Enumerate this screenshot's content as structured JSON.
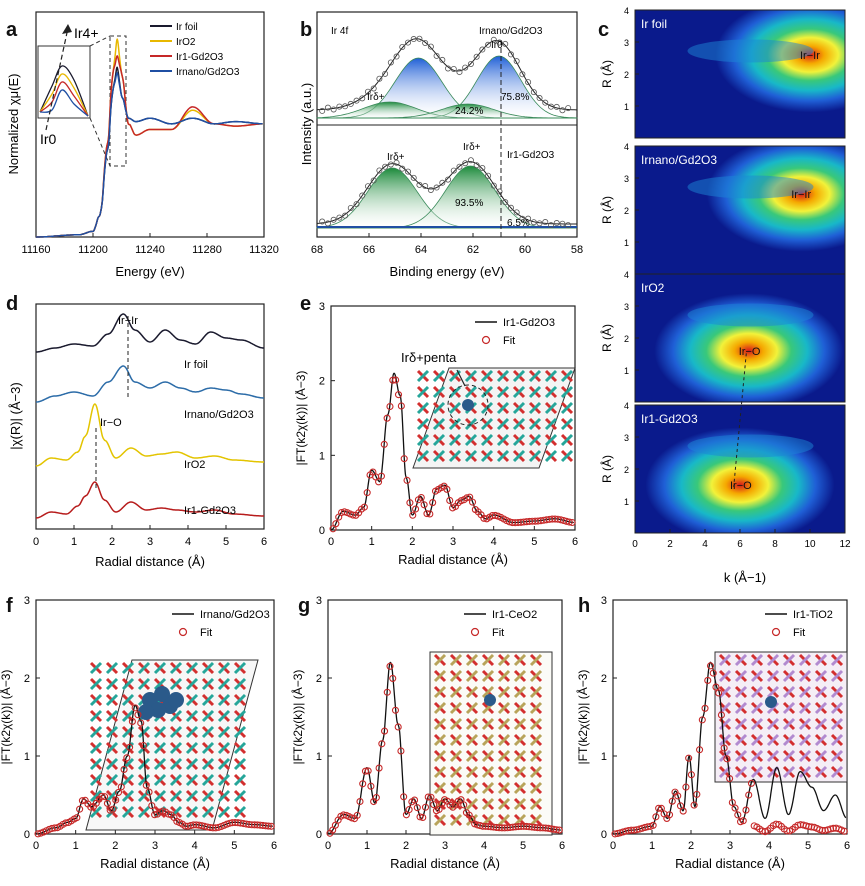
{
  "panels": {
    "a": {
      "letter": "a"
    },
    "b": {
      "letter": "b"
    },
    "c": {
      "letter": "c"
    },
    "d": {
      "letter": "d"
    },
    "e": {
      "letter": "e"
    },
    "f": {
      "letter": "f"
    },
    "g": {
      "letter": "g"
    },
    "h": {
      "letter": "h"
    }
  },
  "chart_data": [
    {
      "id": "a",
      "type": "line",
      "xlabel": "Energy (eV)",
      "ylabel": "Normalized χμ(E)",
      "xlim": [
        11160,
        11320
      ],
      "xticks": [
        11160,
        11200,
        11240,
        11280,
        11320
      ],
      "annotations": [
        "Ir4+",
        "Ir0"
      ],
      "legend": "top-right",
      "series": [
        {
          "name": "Ir foil",
          "color": "#1a1a2e"
        },
        {
          "name": "IrO2",
          "color": "#e8b800"
        },
        {
          "name": "Ir1-Gd2O3",
          "color": "#c62828"
        },
        {
          "name": "Irnano/Gd2O3",
          "color": "#1f4fa3"
        }
      ],
      "x": [
        11160,
        11190,
        11200,
        11205,
        11210,
        11214,
        11217,
        11220,
        11225,
        11230,
        11240,
        11255,
        11270,
        11285,
        11300,
        11320
      ],
      "y_ir_foil": [
        0.0,
        0.02,
        0.05,
        0.2,
        0.75,
        1.3,
        1.5,
        1.25,
        1.05,
        1.02,
        1.05,
        1.0,
        1.05,
        1.0,
        1.02,
        1.0
      ],
      "y_iro2": [
        0.0,
        0.02,
        0.05,
        0.2,
        0.8,
        1.45,
        1.75,
        1.45,
        1.0,
        0.9,
        0.95,
        0.95,
        1.12,
        1.0,
        0.98,
        1.0
      ]
    },
    {
      "id": "b",
      "type": "line",
      "xlabel": "Binding energy (eV)",
      "ylabel": "Intensity (a.u.)",
      "xlim": [
        68,
        58
      ],
      "xticks": [
        68,
        66,
        64,
        62,
        60,
        58
      ],
      "top": {
        "label": "Irnano/Gd2O3",
        "core": "Ir 4f",
        "peaks": [
          {
            "state": "Ir0",
            "percent": "75.8%"
          },
          {
            "state": "Irδ+",
            "percent": "24.2%"
          }
        ]
      },
      "bottom": {
        "label": "Ir1-Gd2O3",
        "peaks": [
          {
            "state": "Irδ+",
            "percent": "93.5%"
          },
          {
            "state": "Ir0",
            "percent": "6.5%"
          }
        ]
      }
    },
    {
      "id": "c",
      "type": "heatmap",
      "xlabel": "k (Å−1)",
      "ylabel": "R (Å)",
      "xlim": [
        0,
        12
      ],
      "ylim": [
        0,
        4
      ],
      "subplots": [
        {
          "name": "Ir foil",
          "bond": "Ir−Ir",
          "peak_k": 10,
          "peak_R": 2.6
        },
        {
          "name": "Irnano/Gd2O3",
          "bond": "Ir−Ir",
          "peak_k": 9.5,
          "peak_R": 2.5
        },
        {
          "name": "IrO2",
          "bond": "Ir−O",
          "peak_k": 6.5,
          "peak_R": 1.6
        },
        {
          "name": "Ir1-Gd2O3",
          "bond": "Ir−O",
          "peak_k": 6,
          "peak_R": 1.5
        }
      ]
    },
    {
      "id": "d",
      "type": "line",
      "xlabel": "Radial distance (Å)",
      "ylabel": "|χ(R)| (Å−3)",
      "xlim": [
        0,
        6
      ],
      "xticks": [
        0,
        1,
        2,
        3,
        4,
        5,
        6
      ],
      "annotations": [
        "Ir−Ir",
        "Ir−O"
      ],
      "series": [
        {
          "name": "Ir foil",
          "color": "#1a1a2e"
        },
        {
          "name": "Irnano/Gd2O3",
          "color": "#2c6ca8"
        },
        {
          "name": "IrO2",
          "color": "#e3c400"
        },
        {
          "name": "Ir1-Gd2O3",
          "color": "#b71c1c"
        }
      ]
    },
    {
      "id": "e",
      "type": "line",
      "xlabel": "Radial distance (Å)",
      "ylabel": "|FT(k2χ(k))| (Å−3)",
      "xlim": [
        0,
        6
      ],
      "ylim": [
        0,
        3
      ],
      "xticks": [
        0,
        1,
        2,
        3,
        4,
        5,
        6
      ],
      "yticks": [
        0,
        1,
        2,
        3
      ],
      "inset_label": "Irδ+penta",
      "series": [
        {
          "name": "Ir1-Gd2O3",
          "color": "#111111"
        },
        {
          "name": "Fit",
          "color": "#c62828"
        }
      ],
      "x": [
        0.0,
        0.3,
        0.6,
        0.8,
        1.0,
        1.2,
        1.4,
        1.55,
        1.7,
        1.85,
        2.0,
        2.2,
        2.4,
        2.6,
        2.8,
        3.0,
        3.2,
        3.4,
        3.6,
        3.8,
        4.0,
        4.5,
        5.0,
        5.5,
        6.0
      ],
      "y": [
        0.0,
        0.25,
        0.2,
        0.3,
        0.8,
        0.65,
        1.55,
        2.1,
        1.8,
        0.7,
        0.2,
        0.45,
        0.2,
        0.55,
        0.6,
        0.3,
        0.4,
        0.45,
        0.25,
        0.15,
        0.2,
        0.1,
        0.12,
        0.15,
        0.1
      ]
    },
    {
      "id": "f",
      "type": "line",
      "xlabel": "Radial distance (Å)",
      "ylabel": "|FT(k2χ(k))| (Å−3)",
      "xlim": [
        0,
        6
      ],
      "ylim": [
        0,
        3
      ],
      "xticks": [
        0,
        1,
        2,
        3,
        4,
        5,
        6
      ],
      "yticks": [
        0,
        1,
        2,
        3
      ],
      "series": [
        {
          "name": "Irnano/Gd2O3",
          "color": "#111111"
        },
        {
          "name": "Fit",
          "color": "#c62828"
        }
      ],
      "x": [
        0.0,
        0.5,
        0.8,
        1.0,
        1.2,
        1.4,
        1.7,
        1.9,
        2.1,
        2.3,
        2.5,
        2.65,
        2.8,
        3.0,
        3.2,
        3.4,
        3.6,
        3.8,
        4.0,
        4.5,
        5.0,
        5.5,
        6.0
      ],
      "y": [
        0.0,
        0.08,
        0.15,
        0.2,
        0.45,
        0.35,
        0.5,
        0.3,
        0.55,
        1.0,
        1.65,
        1.45,
        0.6,
        0.25,
        0.3,
        0.25,
        0.15,
        0.1,
        0.12,
        0.08,
        0.15,
        0.12,
        0.1
      ]
    },
    {
      "id": "g",
      "type": "line",
      "xlabel": "Radial distance (Å)",
      "ylabel": "|FT(k2χ(k))| (Å−3)",
      "xlim": [
        0,
        6
      ],
      "ylim": [
        0,
        3
      ],
      "xticks": [
        0,
        1,
        2,
        3,
        4,
        5,
        6
      ],
      "yticks": [
        0,
        1,
        2,
        3
      ],
      "series": [
        {
          "name": "Ir1-CeO2",
          "color": "#111111"
        },
        {
          "name": "Fit",
          "color": "#c62828"
        }
      ],
      "x": [
        0.0,
        0.4,
        0.7,
        1.0,
        1.2,
        1.4,
        1.6,
        1.8,
        2.0,
        2.2,
        2.4,
        2.6,
        2.8,
        3.0,
        3.2,
        3.4,
        3.6,
        3.8,
        4.0,
        4.5,
        5.0,
        5.5,
        6.0
      ],
      "y": [
        0.0,
        0.25,
        0.2,
        0.85,
        0.4,
        1.2,
        2.2,
        1.4,
        0.25,
        0.45,
        0.2,
        0.5,
        0.3,
        0.45,
        0.35,
        0.45,
        0.25,
        0.12,
        0.1,
        0.08,
        0.1,
        0.08,
        0.05
      ]
    },
    {
      "id": "h",
      "type": "line",
      "xlabel": "Radial distance (Å)",
      "ylabel": "|FT(k2χ(k))| (Å−3)",
      "xlim": [
        0,
        6
      ],
      "ylim": [
        0,
        3
      ],
      "xticks": [
        0,
        1,
        2,
        3,
        4,
        5,
        6
      ],
      "yticks": [
        0,
        1,
        2,
        3
      ],
      "series": [
        {
          "name": "Ir1-TiO2",
          "color": "#111111"
        },
        {
          "name": "Fit",
          "color": "#c62828"
        }
      ],
      "x": [
        0.0,
        0.5,
        1.0,
        1.2,
        1.4,
        1.6,
        1.8,
        1.95,
        2.1,
        2.3,
        2.5,
        2.7,
        2.9,
        3.1,
        3.3,
        3.6,
        3.9,
        4.2,
        4.5,
        4.8,
        5.1,
        5.4,
        5.7,
        6.0
      ],
      "y": [
        0.0,
        0.05,
        0.1,
        0.35,
        0.2,
        0.55,
        0.3,
        1.0,
        0.35,
        1.5,
        2.2,
        1.85,
        1.0,
        0.35,
        0.15,
        0.7,
        0.2,
        0.85,
        0.25,
        0.8,
        0.6,
        0.3,
        0.5,
        0.2
      ]
    }
  ]
}
